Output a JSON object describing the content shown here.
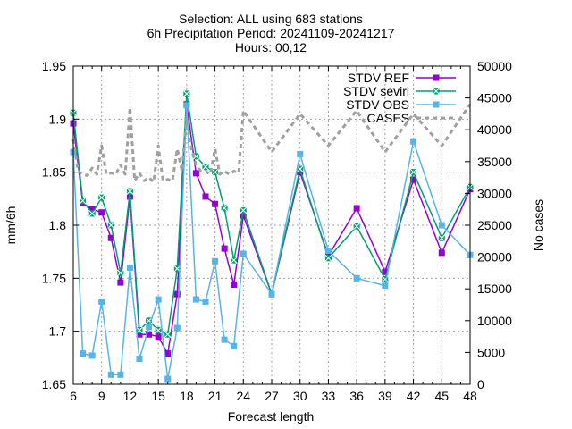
{
  "chart_data": {
    "type": "line",
    "title_lines": [
      "Selection: ALL using   683 stations",
      "6h Precipitation   Period: 20241109-20241217",
      "Hours: 00,12"
    ],
    "xlabel": "Forecast length",
    "ylabel": "mm/6h",
    "y2label": "No cases",
    "xlim": [
      6,
      48
    ],
    "ylim": [
      1.65,
      1.95
    ],
    "y2lim": [
      0,
      50000
    ],
    "xticks": [
      6,
      9,
      12,
      15,
      18,
      21,
      24,
      27,
      30,
      33,
      36,
      39,
      42,
      45,
      48
    ],
    "yticks": [
      1.65,
      1.7,
      1.75,
      1.8,
      1.85,
      1.9,
      1.95
    ],
    "y2ticks": [
      0,
      5000,
      10000,
      15000,
      20000,
      25000,
      30000,
      35000,
      40000,
      45000,
      50000
    ],
    "grid": true,
    "legend_position": "top-right",
    "series": [
      {
        "name": "STDV REF",
        "axis": "y",
        "color": "#9400d3",
        "marker": "square",
        "x": [
          6,
          7,
          8,
          9,
          10,
          11,
          12,
          13,
          14,
          15,
          16,
          17,
          18,
          19,
          20,
          21,
          22,
          23,
          24,
          27,
          30,
          33,
          36,
          39,
          42,
          45,
          48
        ],
        "values": [
          1.896,
          1.821,
          1.815,
          1.812,
          1.788,
          1.746,
          1.827,
          1.697,
          1.697,
          1.695,
          1.679,
          1.735,
          1.914,
          1.849,
          1.827,
          1.82,
          1.778,
          1.744,
          1.809,
          1.735,
          1.85,
          1.771,
          1.816,
          1.756,
          1.843,
          1.774,
          1.834
        ]
      },
      {
        "name": "STDV seviri",
        "axis": "y",
        "color": "#009e73",
        "marker": "square-x",
        "x": [
          6,
          7,
          8,
          9,
          10,
          11,
          12,
          13,
          14,
          15,
          16,
          17,
          18,
          19,
          20,
          21,
          22,
          23,
          24,
          27,
          30,
          33,
          36,
          39,
          42,
          45,
          48
        ],
        "values": [
          1.906,
          1.823,
          1.811,
          1.826,
          1.8,
          1.755,
          1.832,
          1.701,
          1.71,
          1.701,
          1.697,
          1.759,
          1.924,
          1.865,
          1.855,
          1.85,
          1.816,
          1.767,
          1.814,
          1.735,
          1.853,
          1.769,
          1.799,
          1.749,
          1.85,
          1.788,
          1.836
        ]
      },
      {
        "name": "STDV OBS",
        "axis": "y",
        "color": "#56b4e9",
        "marker": "square",
        "x": [
          6,
          7,
          8,
          9,
          10,
          11,
          12,
          13,
          14,
          15,
          16,
          17,
          18,
          19,
          20,
          21,
          22,
          23,
          24,
          27,
          30,
          33,
          36,
          39,
          42,
          45,
          48
        ],
        "values": [
          1.869,
          1.679,
          1.677,
          1.728,
          1.659,
          1.659,
          1.76,
          1.674,
          1.704,
          1.73,
          1.655,
          1.703,
          1.913,
          1.73,
          1.728,
          1.766,
          1.692,
          1.686,
          1.773,
          1.735,
          1.867,
          1.776,
          1.75,
          1.743,
          1.879,
          1.8,
          1.772
        ]
      },
      {
        "name": "CASES",
        "axis": "y2",
        "color": "#a0a0a0",
        "style": "dashed",
        "x": [
          6,
          6.5,
          7,
          7.5,
          8,
          8.5,
          9,
          9.5,
          10,
          10.5,
          11,
          11.5,
          12,
          12.5,
          13,
          13.5,
          14,
          14.5,
          15,
          15.5,
          16,
          16.5,
          17,
          17.5,
          18,
          18.5,
          19,
          19.5,
          20,
          20.5,
          21,
          21.5,
          22,
          22.5,
          23,
          23.5,
          24,
          27,
          30,
          33,
          36,
          39,
          42,
          45,
          48
        ],
        "values": [
          38500,
          33500,
          33000,
          32800,
          34000,
          33000,
          37500,
          33000,
          33200,
          33000,
          34500,
          33000,
          43500,
          32000,
          33200,
          32000,
          32500,
          31800,
          37500,
          32000,
          32200,
          32000,
          37000,
          33500,
          42000,
          37000,
          34500,
          33500,
          33500,
          33000,
          37000,
          33000,
          33500,
          33000,
          33500,
          33200,
          43000,
          36500,
          42500,
          37500,
          43000,
          36500,
          42500,
          37500,
          44000
        ]
      }
    ]
  }
}
